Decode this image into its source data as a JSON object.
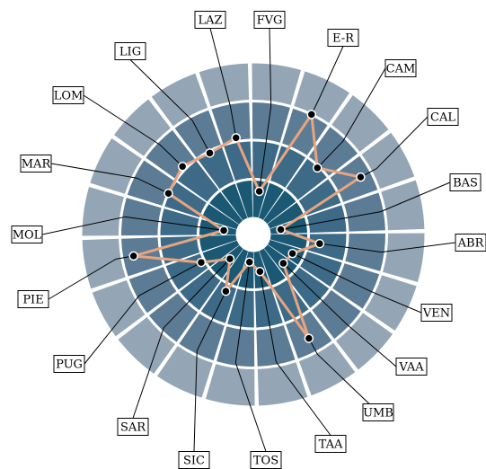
{
  "chart_data": {
    "type": "radar",
    "title": "",
    "rlim": [
      0,
      5
    ],
    "rings": 4,
    "ring_colors": [
      "#1a5874",
      "#3c6a87",
      "#5c7c95",
      "#94a6b6"
    ],
    "line_color": "#e8a47e",
    "grid_color": "#ffffff",
    "categories": [
      "FVG",
      "E-R",
      "CAM",
      "CAL",
      "BAS",
      "ABR",
      "VEN",
      "VAA",
      "UMB",
      "TAA",
      "TOS",
      "SIC",
      "SAR",
      "PUG",
      "PIE",
      "MOL",
      "MAR",
      "LOM",
      "LIG",
      "LAZ"
    ],
    "values": [
      0.7,
      3.0,
      1.95,
      2.7,
      0.3,
      1.3,
      0.7,
      0.65,
      2.6,
      0.55,
      0.3,
      1.2,
      0.45,
      1.1,
      2.7,
      0.35,
      2.0,
      2.1,
      1.95,
      2.1
    ]
  }
}
